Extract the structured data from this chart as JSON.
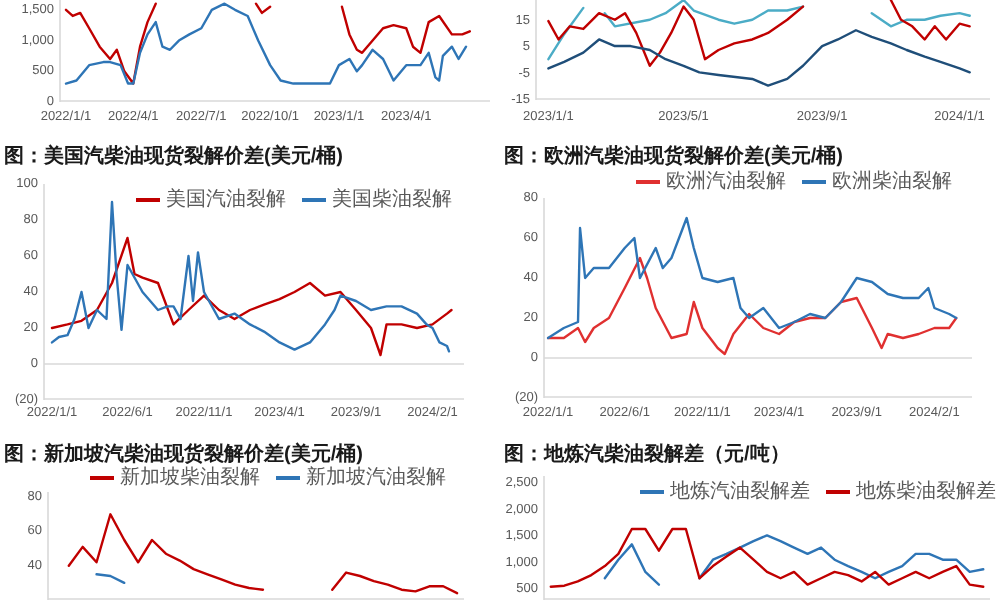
{
  "chart_data": [
    {
      "type": "line",
      "xlim": [
        "2021-12-24",
        "2023-07-22"
      ],
      "ylim": [
        0,
        1660
      ],
      "yticks": [
        0,
        500,
        {
          "value": 1000,
          "label": "1,000"
        },
        {
          "value": 1500,
          "label": "1,500"
        }
      ],
      "xticks": [
        {
          "value": "2022-01-01",
          "label": "2022/1/1"
        },
        {
          "value": "2022-04-01",
          "label": "2022/4/1"
        },
        {
          "value": "2022-07-01",
          "label": "2022/7/1"
        },
        {
          "value": "2022-10-01",
          "label": "2022/10/1"
        },
        {
          "value": "2023-01-01",
          "label": "2023/1/1"
        },
        {
          "value": "2023-04-01",
          "label": "2023/4/1"
        }
      ],
      "series": [
        {
          "color": "#c00000",
          "x": [
            "2022-01-01",
            "2022-01-10",
            "2022-01-20",
            "2022-02-01",
            "2022-02-15",
            "2022-03-01",
            "2022-03-10",
            "2022-03-20",
            "2022-04-01",
            "2022-04-10",
            "2022-04-20",
            "2022-05-01",
            "2022-05-10",
            "2022-09-05",
            "2022-09-12",
            "2022-09-20",
            "2022-10-01",
            "2022-10-10",
            "2022-12-30",
            "2023-01-05",
            "2023-01-15",
            "2023-01-25",
            "2023-02-01",
            "2023-02-15",
            "2023-03-01",
            "2023-03-15",
            "2023-04-01",
            "2023-04-10",
            "2023-04-20",
            "2023-05-01",
            "2023-05-15",
            "2023-06-01",
            "2023-06-15",
            "2023-06-25"
          ],
          "values": [
            1500,
            1400,
            1450,
            1200,
            900,
            700,
            850,
            500,
            300,
            900,
            1300,
            1600,
            null,
            null,
            1600,
            1450,
            1550,
            null,
            null,
            1550,
            1100,
            850,
            800,
            1000,
            1200,
            1250,
            1200,
            900,
            800,
            1300,
            1400,
            1100,
            1100,
            1150
          ]
        },
        {
          "color": "#2e75b6",
          "x": [
            "2022-01-01",
            "2022-01-15",
            "2022-02-01",
            "2022-02-20",
            "2022-03-01",
            "2022-03-15",
            "2022-03-25",
            "2022-04-01",
            "2022-04-10",
            "2022-04-20",
            "2022-05-01",
            "2022-05-10",
            "2022-05-20",
            "2022-06-01",
            "2022-06-15",
            "2022-07-01",
            "2022-07-15",
            "2022-08-01",
            "2022-08-15",
            "2022-09-01",
            "2022-09-15",
            "2022-10-01",
            "2022-10-15",
            "2022-11-01",
            "2022-12-01",
            "2022-12-20",
            "2023-01-01",
            "2023-01-15",
            "2023-01-25",
            "2023-02-01",
            "2023-02-15",
            "2023-03-01",
            "2023-03-15",
            "2023-04-01",
            "2023-04-20",
            "2023-05-01",
            "2023-05-10",
            "2023-05-15",
            "2023-05-20",
            "2023-06-01",
            "2023-06-10",
            "2023-06-20"
          ],
          "values": [
            300,
            350,
            600,
            650,
            650,
            600,
            300,
            300,
            800,
            1100,
            1300,
            900,
            850,
            1000,
            1100,
            1200,
            1500,
            1600,
            1500,
            1400,
            1000,
            600,
            350,
            300,
            300,
            300,
            600,
            700,
            500,
            600,
            850,
            700,
            350,
            600,
            600,
            800,
            400,
            350,
            750,
            900,
            700,
            900
          ]
        }
      ]
    },
    {
      "type": "line",
      "xlim": [
        "2022-12-21",
        "2024-01-28"
      ],
      "ylim": [
        -15,
        23
      ],
      "yticks": [
        -15,
        -5,
        5,
        15
      ],
      "xticks": [
        {
          "value": "2023-01-01",
          "label": "2023/1/1"
        },
        {
          "value": "2023-05-01",
          "label": "2023/5/1"
        },
        {
          "value": "2023-09-01",
          "label": "2023/9/1"
        },
        {
          "value": "2024-01-01",
          "label": "2024/1/1"
        }
      ],
      "series": [
        {
          "color": "#4bacc6",
          "x": [
            "2023-01-01",
            "2023-01-15",
            "2023-02-01",
            "2023-02-10",
            "2023-02-20",
            "2023-03-01",
            "2023-04-01",
            "2023-04-15",
            "2023-05-01",
            "2023-05-10",
            "2023-06-01",
            "2023-06-15",
            "2023-07-01",
            "2023-07-15",
            "2023-08-01",
            "2023-08-15",
            "2023-09-01",
            "2023-10-10",
            "2023-10-15",
            "2023-11-01",
            "2023-11-15",
            "2023-12-01",
            "2023-12-15",
            "2024-01-01",
            "2024-01-10"
          ],
          "values": [
            0.5,
            10,
            20,
            null,
            18,
            13,
            15.5,
            18,
            23,
            19,
            15.5,
            14,
            15.5,
            19,
            19,
            20.5,
            null,
            null,
            18,
            13,
            15.5,
            15.5,
            17,
            18,
            17
          ]
        },
        {
          "color": "#c00000",
          "x": [
            "2023-01-01",
            "2023-01-10",
            "2023-01-20",
            "2023-02-01",
            "2023-02-15",
            "2023-03-01",
            "2023-03-10",
            "2023-03-20",
            "2023-04-01",
            "2023-04-10",
            "2023-04-20",
            "2023-05-01",
            "2023-05-10",
            "2023-05-20",
            "2023-06-01",
            "2023-06-15",
            "2023-07-01",
            "2023-07-15",
            "2023-08-01",
            "2023-08-15",
            "2023-09-01",
            "2023-10-25",
            "2023-11-01",
            "2023-11-10",
            "2023-11-20",
            "2023-12-01",
            "2023-12-10",
            "2023-12-20",
            "2024-01-01",
            "2024-01-10"
          ],
          "values": [
            15,
            8,
            13,
            12,
            18,
            15.5,
            18,
            10.5,
            -2,
            3,
            10.5,
            20.5,
            15.5,
            0.5,
            4,
            6.5,
            8,
            10.5,
            15.5,
            20.5,
            null,
            null,
            23,
            15.5,
            13,
            8,
            13,
            8,
            14,
            13
          ]
        },
        {
          "color": "#1f4e79",
          "x": [
            "2023-01-01",
            "2023-01-15",
            "2023-02-01",
            "2023-02-15",
            "2023-03-01",
            "2023-03-15",
            "2023-04-01",
            "2023-04-15",
            "2023-05-01",
            "2023-05-15",
            "2023-06-01",
            "2023-07-01",
            "2023-07-15",
            "2023-08-01",
            "2023-08-15",
            "2023-09-01",
            "2023-09-15",
            "2023-10-01",
            "2023-10-15",
            "2023-11-01",
            "2023-11-15",
            "2023-12-01",
            "2023-12-15",
            "2024-01-01",
            "2024-01-10"
          ],
          "values": [
            -3,
            -0.5,
            3,
            8,
            5.5,
            5.5,
            4,
            0.5,
            -2,
            -4.5,
            -5.5,
            -7,
            -9.5,
            -7,
            -2,
            5.5,
            8,
            11.5,
            9,
            6.5,
            4,
            1.5,
            -0.5,
            -3,
            -4.5
          ]
        }
      ]
    },
    {
      "type": "line",
      "title": "图：美国汽柴油现货裂解价差(美元/桶)",
      "legend": "top",
      "xlim": [
        "2021-12-16",
        "2024-04-04"
      ],
      "ylim": [
        -20,
        100
      ],
      "yticks": [
        {
          "value": -20,
          "label": "(20)"
        },
        0,
        20,
        40,
        60,
        80,
        100
      ],
      "xticks": [
        {
          "value": "2022-01-01",
          "label": "2022/1/1"
        },
        {
          "value": "2022-06-01",
          "label": "2022/6/1"
        },
        {
          "value": "2022-11-01",
          "label": "2022/11/1"
        },
        {
          "value": "2023-04-01",
          "label": "2023/4/1"
        },
        {
          "value": "2023-09-01",
          "label": "2023/9/1"
        },
        {
          "value": "2024-02-01",
          "label": "2024/2/1"
        }
      ],
      "ref_lines": [
        {
          "axis": "y",
          "value": 0,
          "color": "#d9d9d9"
        }
      ],
      "series": [
        {
          "name": "美国汽油裂解",
          "color": "#c00000",
          "x": [
            "2022-01-01",
            "2022-02-01",
            "2022-03-01",
            "2022-04-01",
            "2022-05-01",
            "2022-06-01",
            "2022-06-15",
            "2022-07-01",
            "2022-08-01",
            "2022-09-01",
            "2022-10-01",
            "2022-11-01",
            "2022-12-01",
            "2023-01-01",
            "2023-02-01",
            "2023-03-01",
            "2023-04-01",
            "2023-05-01",
            "2023-06-01",
            "2023-07-01",
            "2023-08-01",
            "2023-09-01",
            "2023-10-01",
            "2023-10-20",
            "2023-11-01",
            "2023-12-01",
            "2024-01-01",
            "2024-02-01",
            "2024-03-01",
            "2024-03-10"
          ],
          "values": [
            20,
            22,
            24,
            30,
            45,
            70,
            50,
            48,
            45,
            22,
            30,
            38,
            30,
            25,
            30,
            33,
            36,
            40,
            45,
            38,
            40,
            30,
            20,
            5,
            22,
            22,
            20,
            22,
            28,
            30
          ]
        },
        {
          "name": "美国柴油裂解",
          "color": "#2e75b6",
          "x": [
            "2022-01-01",
            "2022-01-15",
            "2022-02-01",
            "2022-02-15",
            "2022-03-01",
            "2022-03-15",
            "2022-04-01",
            "2022-04-20",
            "2022-05-01",
            "2022-05-10",
            "2022-05-20",
            "2022-06-01",
            "2022-07-01",
            "2022-08-01",
            "2022-08-20",
            "2022-09-01",
            "2022-09-15",
            "2022-10-01",
            "2022-10-10",
            "2022-10-20",
            "2022-11-01",
            "2022-12-01",
            "2023-01-01",
            "2023-02-01",
            "2023-03-01",
            "2023-04-01",
            "2023-05-01",
            "2023-06-01",
            "2023-07-01",
            "2023-07-20",
            "2023-08-01",
            "2023-09-01",
            "2023-10-01",
            "2023-11-01",
            "2023-12-01",
            "2024-01-01",
            "2024-01-20",
            "2024-02-01",
            "2024-02-15",
            "2024-03-01",
            "2024-03-05"
          ],
          "values": [
            12,
            15,
            16,
            25,
            40,
            20,
            30,
            25,
            90,
            50,
            19,
            55,
            40,
            30,
            32,
            32,
            25,
            60,
            35,
            62,
            40,
            25,
            28,
            22,
            18,
            12,
            8,
            12,
            22,
            30,
            38,
            35,
            30,
            32,
            32,
            28,
            22,
            20,
            12,
            10,
            7
          ]
        }
      ]
    },
    {
      "type": "line",
      "title": "图：欧洲汽柴油现货裂解价差(美元/桶)",
      "legend": "top",
      "xlim": [
        "2021-12-24",
        "2024-04-15"
      ],
      "ylim": [
        -20,
        80
      ],
      "yticks": [
        {
          "value": -20,
          "label": "(20)"
        },
        0,
        20,
        40,
        60,
        80
      ],
      "xticks": [
        {
          "value": "2022-01-01",
          "label": "2022/1/1"
        },
        {
          "value": "2022-06-01",
          "label": "2022/6/1"
        },
        {
          "value": "2022-11-01",
          "label": "2022/11/1"
        },
        {
          "value": "2023-04-01",
          "label": "2023/4/1"
        },
        {
          "value": "2023-09-01",
          "label": "2023/9/1"
        },
        {
          "value": "2024-02-01",
          "label": "2024/2/1"
        }
      ],
      "ref_lines": [
        {
          "axis": "y",
          "value": 0,
          "color": "#d9d9d9"
        }
      ],
      "series": [
        {
          "name": "欧洲汽油裂解",
          "color": "#e03030",
          "x": [
            "2022-01-01",
            "2022-02-01",
            "2022-03-01",
            "2022-03-15",
            "2022-04-01",
            "2022-05-01",
            "2022-06-01",
            "2022-07-01",
            "2022-07-15",
            "2022-08-01",
            "2022-09-01",
            "2022-10-01",
            "2022-10-15",
            "2022-11-01",
            "2022-12-01",
            "2022-12-15",
            "2023-01-01",
            "2023-02-01",
            "2023-03-01",
            "2023-04-01",
            "2023-05-01",
            "2023-06-01",
            "2023-07-01",
            "2023-08-01",
            "2023-09-01",
            "2023-10-01",
            "2023-10-20",
            "2023-11-01",
            "2023-12-01",
            "2024-01-01",
            "2024-02-01",
            "2024-03-01",
            "2024-03-15"
          ],
          "values": [
            10,
            10,
            15,
            8,
            15,
            20,
            35,
            50,
            40,
            25,
            10,
            12,
            28,
            15,
            5,
            2,
            12,
            22,
            15,
            12,
            18,
            20,
            20,
            28,
            30,
            15,
            5,
            12,
            10,
            12,
            15,
            15,
            20
          ]
        },
        {
          "name": "欧洲柴油裂解",
          "color": "#2e75b6",
          "x": [
            "2022-01-01",
            "2022-02-01",
            "2022-03-01",
            "2022-03-05",
            "2022-03-15",
            "2022-04-01",
            "2022-05-01",
            "2022-06-01",
            "2022-06-20",
            "2022-07-01",
            "2022-08-01",
            "2022-08-15",
            "2022-09-01",
            "2022-10-01",
            "2022-10-15",
            "2022-11-01",
            "2022-12-01",
            "2023-01-01",
            "2023-01-15",
            "2023-02-01",
            "2023-03-01",
            "2023-04-01",
            "2023-05-01",
            "2023-06-01",
            "2023-07-01",
            "2023-08-01",
            "2023-09-01",
            "2023-10-01",
            "2023-11-01",
            "2023-12-01",
            "2024-01-01",
            "2024-01-20",
            "2024-02-01",
            "2024-03-01",
            "2024-03-15"
          ],
          "values": [
            10,
            15,
            18,
            65,
            40,
            45,
            45,
            55,
            60,
            40,
            55,
            45,
            50,
            70,
            55,
            40,
            38,
            40,
            25,
            20,
            25,
            15,
            18,
            22,
            20,
            28,
            40,
            38,
            32,
            30,
            30,
            35,
            25,
            22,
            20
          ]
        }
      ]
    },
    {
      "type": "line",
      "title": "图：新加坡汽柴油现货裂解价差(美元/桶)",
      "legend": "top",
      "tick_labels": "y",
      "ylim": [
        20,
        83
      ],
      "yticks": [
        40,
        60,
        80
      ],
      "categories": [
        null,
        null,
        null,
        null,
        null,
        null,
        null,
        null,
        null,
        null,
        null,
        null,
        null,
        null,
        null,
        null,
        null,
        null,
        null,
        null,
        null,
        null,
        null,
        null,
        null,
        null,
        null,
        null,
        null,
        null
      ],
      "series": [
        {
          "name": "新加坡柴油裂解",
          "color": "#c00000",
          "values": [
            null,
            40,
            51,
            42,
            70,
            55,
            42,
            55,
            47,
            43,
            38,
            35,
            32,
            29,
            27,
            26,
            null,
            null,
            null,
            null,
            26,
            36,
            34,
            31,
            29,
            26,
            25,
            28,
            28,
            24
          ]
        },
        {
          "name": "新加坡汽油裂解",
          "color": "#2e75b6",
          "values": [
            null,
            null,
            null,
            35,
            34,
            30,
            null,
            null,
            null,
            null,
            null,
            null,
            null,
            null,
            null,
            null,
            null,
            null,
            null,
            null,
            null,
            null,
            null,
            null,
            null,
            null,
            null,
            null,
            null,
            null
          ]
        }
      ]
    },
    {
      "type": "line",
      "title": "图：地炼汽柴油裂解差（元/吨）",
      "legend": "top",
      "tick_labels": "y",
      "ylim": [
        300,
        2640
      ],
      "yticks": [
        500,
        {
          "value": 1000,
          "label": "1,000"
        },
        {
          "value": 1500,
          "label": "1,500"
        },
        {
          "value": 2000,
          "label": "2,000"
        },
        {
          "value": 2500,
          "label": "2,500"
        }
      ],
      "categories": [
        null,
        null,
        null,
        null,
        null,
        null,
        null,
        null,
        null,
        null,
        null,
        null,
        null,
        null,
        null,
        null,
        null,
        null,
        null,
        null,
        null,
        null,
        null,
        null,
        null,
        null,
        null,
        null,
        null,
        null,
        null,
        null,
        null
      ],
      "series": [
        {
          "name": "地炼汽油裂解差",
          "color": "#2e75b6",
          "values": [
            null,
            null,
            null,
            null,
            710,
            1060,
            1350,
            830,
            590,
            null,
            null,
            710,
            1060,
            1170,
            1290,
            1410,
            1520,
            1410,
            1290,
            1170,
            1290,
            1060,
            940,
            830,
            710,
            830,
            940,
            1170,
            1170,
            1060,
            1060,
            830,
            880
          ]
        },
        {
          "name": "地炼柴油裂解差",
          "color": "#c00000",
          "values": [
            550,
            570,
            650,
            770,
            940,
            1170,
            1640,
            1640,
            1230,
            1640,
            1640,
            710,
            940,
            1120,
            1290,
            1060,
            830,
            710,
            830,
            590,
            710,
            830,
            770,
            650,
            830,
            590,
            710,
            830,
            710,
            830,
            940,
            590,
            550
          ]
        }
      ]
    }
  ]
}
